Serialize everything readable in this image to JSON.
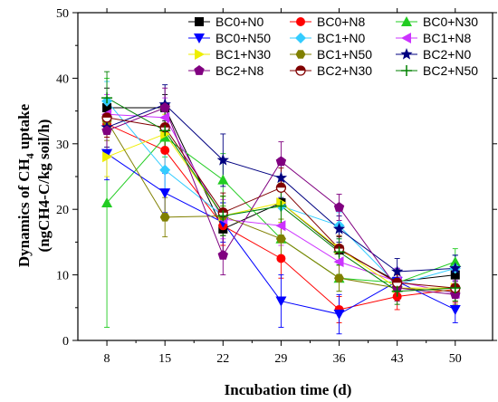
{
  "chart_data": {
    "type": "line",
    "title": "",
    "xlabel": "Incubation time (d)",
    "ylabel_line1_prefix": "Dynamics of CH",
    "ylabel_line1_sub": "4",
    "ylabel_line1_suffix": " uptake",
    "ylabel_line2": "(ngCH4-C/kg soil/h)",
    "x": [
      8,
      15,
      22,
      29,
      36,
      43,
      50
    ],
    "x_ticks": [
      "8",
      "15",
      "22",
      "29",
      "36",
      "43",
      "50"
    ],
    "ylim": [
      0,
      50
    ],
    "y_ticks": [
      "0",
      "10",
      "20",
      "30",
      "40",
      "50"
    ],
    "grid": false,
    "legend_placement": "top-right",
    "series": [
      {
        "name": "BC0+N0",
        "color": "#000000",
        "marker": "square",
        "values": [
          35.5,
          35.5,
          17.0,
          21.0,
          13.8,
          9.0,
          10.0
        ],
        "errors": [
          3,
          2,
          4,
          3,
          2,
          2,
          3
        ]
      },
      {
        "name": "BC0+N8",
        "color": "#ff0000",
        "marker": "circle",
        "values": [
          33.0,
          29.0,
          17.5,
          12.5,
          4.7,
          6.7,
          7.8
        ],
        "errors": [
          4,
          3,
          3,
          3,
          2,
          2,
          2
        ]
      },
      {
        "name": "BC0+N30",
        "color": "#22cc22",
        "marker": "triangle-up",
        "values": [
          21.0,
          31.0,
          24.5,
          15.5,
          9.5,
          8.8,
          12.0
        ],
        "errors": [
          19,
          3,
          4,
          3,
          2,
          2,
          2
        ]
      },
      {
        "name": "BC0+N50",
        "color": "#0000ff",
        "marker": "triangle-down",
        "values": [
          28.5,
          22.5,
          18.0,
          6.0,
          4.0,
          9.0,
          4.7
        ],
        "errors": [
          4,
          3,
          3,
          4,
          3,
          2,
          2
        ]
      },
      {
        "name": "BC1+N0",
        "color": "#33ccff",
        "marker": "diamond",
        "values": [
          36.5,
          26.0,
          19.0,
          20.5,
          17.5,
          8.5,
          11.0
        ],
        "errors": [
          3,
          3,
          3,
          3,
          2,
          2,
          2
        ]
      },
      {
        "name": "BC1+N8",
        "color": "#cc33ff",
        "marker": "triangle-left",
        "values": [
          34.5,
          34.0,
          18.5,
          17.5,
          12.0,
          9.0,
          7.2
        ],
        "errors": [
          3,
          3,
          3,
          3,
          2,
          2,
          2
        ]
      },
      {
        "name": "BC1+N30",
        "color": "#eeee00",
        "marker": "triangle-right",
        "values": [
          28.0,
          31.5,
          19.0,
          21.0,
          14.0,
          8.0,
          8.0
        ],
        "errors": [
          3,
          3,
          3,
          3,
          2,
          2,
          2
        ]
      },
      {
        "name": "BC1+N50",
        "color": "#808000",
        "marker": "hexagon",
        "values": [
          33.5,
          18.8,
          19.0,
          15.5,
          9.5,
          8.0,
          7.5
        ],
        "errors": [
          3,
          3,
          3,
          3,
          2,
          2,
          2
        ]
      },
      {
        "name": "BC2+N0",
        "color": "#000080",
        "marker": "star",
        "values": [
          32.5,
          36.0,
          27.5,
          24.8,
          17.0,
          10.5,
          11.0
        ],
        "errors": [
          3,
          3,
          4,
          3,
          2,
          2,
          2
        ]
      },
      {
        "name": "BC2+N8",
        "color": "#800080",
        "marker": "pentagon",
        "values": [
          32.0,
          35.5,
          13.0,
          27.3,
          20.3,
          8.0,
          7.0
        ],
        "errors": [
          3,
          3,
          3,
          3,
          2,
          2,
          2
        ]
      },
      {
        "name": "BC2+N30",
        "color": "#800000",
        "marker": "circle-half",
        "values": [
          34.0,
          32.5,
          19.5,
          23.3,
          14.0,
          8.8,
          8.0
        ],
        "errors": [
          3,
          3,
          3,
          3,
          2,
          2,
          2
        ]
      },
      {
        "name": "BC2+N50",
        "color": "#008000",
        "marker": "plus",
        "values": [
          37.0,
          32.0,
          19.0,
          20.5,
          13.5,
          7.5,
          8.0
        ],
        "errors": [
          4,
          3,
          3,
          3,
          2,
          2,
          2
        ]
      }
    ]
  }
}
